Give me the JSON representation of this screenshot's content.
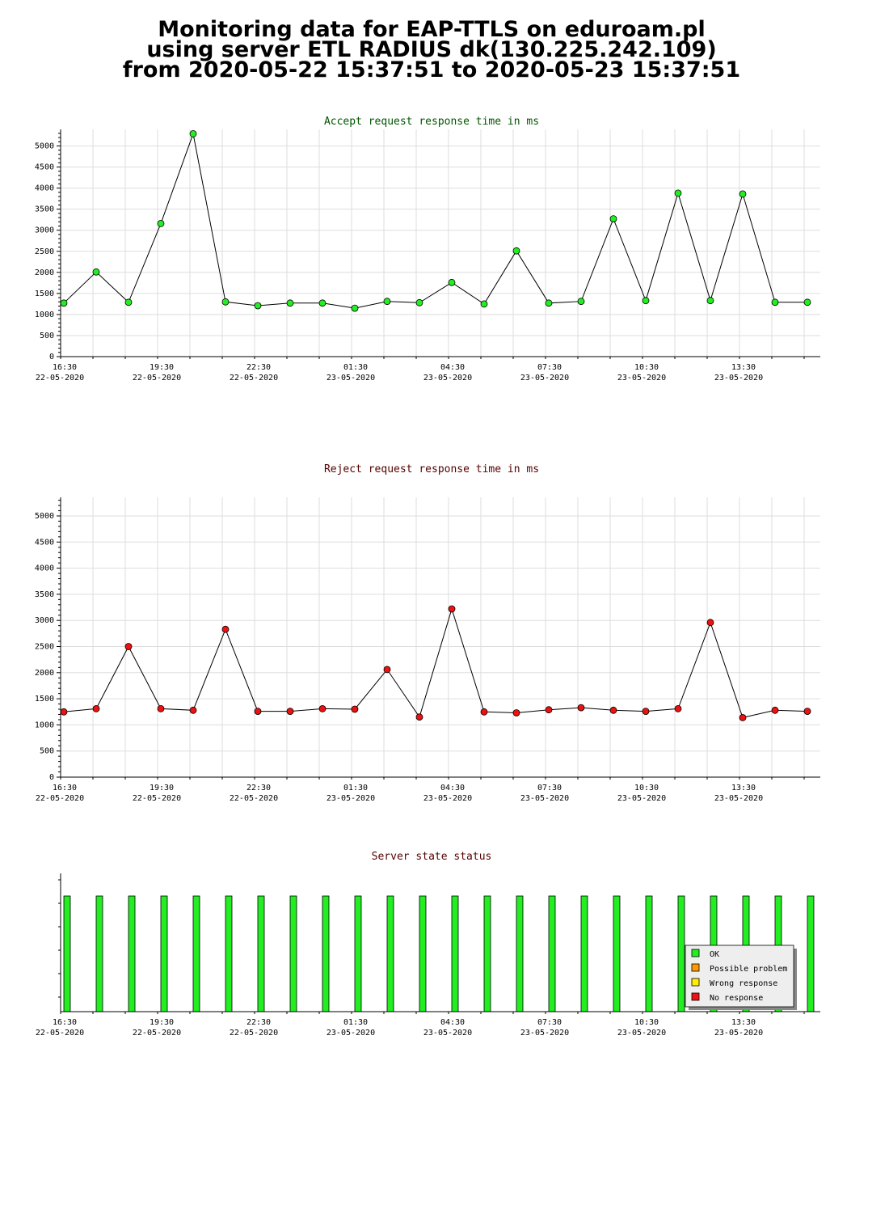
{
  "header": {
    "line1": "Monitoring data for EAP-TTLS on eduroam.pl",
    "line2": "using server ETL RADIUS dk(130.225.242.109)",
    "line3": "from 2020-05-22 15:37:51 to 2020-05-23 15:37:51"
  },
  "colors": {
    "accept": "#22ee22",
    "reject": "#ee1111",
    "accept_title": "#005500",
    "reject_title": "#550000",
    "status_title": "#550000",
    "grid": "#dddddd"
  },
  "chart_data": [
    {
      "type": "line",
      "title": "Accept request response time in ms",
      "y_ticks": [
        "0",
        "500",
        "1000",
        "1500",
        "2000",
        "2500",
        "3000",
        "3500",
        "4000",
        "4500",
        "5000"
      ],
      "x_tick_labels": [
        {
          "time": "16:30",
          "date": "22-05-2020"
        },
        {
          "time": "19:30",
          "date": "22-05-2020"
        },
        {
          "time": "22:30",
          "date": "22-05-2020"
        },
        {
          "time": "01:30",
          "date": "23-05-2020"
        },
        {
          "time": "04:30",
          "date": "23-05-2020"
        },
        {
          "time": "07:30",
          "date": "23-05-2020"
        },
        {
          "time": "10:30",
          "date": "23-05-2020"
        },
        {
          "time": "13:30",
          "date": "23-05-2020"
        }
      ],
      "x": [
        "16:37",
        "17:37",
        "18:37",
        "19:37",
        "20:37",
        "21:37",
        "22:37",
        "23:37",
        "00:37",
        "01:37",
        "02:37",
        "03:37",
        "04:37",
        "05:37",
        "06:37",
        "07:37",
        "08:37",
        "09:37",
        "10:37",
        "11:37",
        "12:37",
        "13:37",
        "14:37",
        "15:37"
      ],
      "ylim": [
        0,
        5300
      ],
      "grid": true,
      "series": [
        {
          "values": [
            1270,
            2010,
            1290,
            3160,
            5290,
            1300,
            1210,
            1270,
            1270,
            1150,
            1310,
            1280,
            1760,
            1250,
            2510,
            1270,
            1310,
            3270,
            1330,
            3880,
            1330,
            3860,
            1290,
            1290
          ]
        }
      ]
    },
    {
      "type": "line",
      "title": "Reject request response time in ms",
      "y_ticks": [
        "0",
        "500",
        "1000",
        "1500",
        "2000",
        "2500",
        "3000",
        "3500",
        "4000",
        "4500",
        "5000"
      ],
      "x_tick_labels": [
        {
          "time": "16:30",
          "date": "22-05-2020"
        },
        {
          "time": "19:30",
          "date": "22-05-2020"
        },
        {
          "time": "22:30",
          "date": "22-05-2020"
        },
        {
          "time": "01:30",
          "date": "23-05-2020"
        },
        {
          "time": "04:30",
          "date": "23-05-2020"
        },
        {
          "time": "07:30",
          "date": "23-05-2020"
        },
        {
          "time": "10:30",
          "date": "23-05-2020"
        },
        {
          "time": "13:30",
          "date": "23-05-2020"
        }
      ],
      "x": [
        "16:37",
        "17:37",
        "18:37",
        "19:37",
        "20:37",
        "21:37",
        "22:37",
        "23:37",
        "00:37",
        "01:37",
        "02:37",
        "03:37",
        "04:37",
        "05:37",
        "06:37",
        "07:37",
        "08:37",
        "09:37",
        "10:37",
        "11:37",
        "12:37",
        "13:37",
        "14:37",
        "15:37"
      ],
      "ylim": [
        0,
        5300
      ],
      "grid": true,
      "series": [
        {
          "values": [
            1250,
            1310,
            2500,
            1310,
            1280,
            2830,
            1260,
            1260,
            1310,
            1300,
            2060,
            1150,
            3220,
            1250,
            1230,
            1290,
            1330,
            1280,
            1260,
            1310,
            2960,
            1140,
            1280,
            1260
          ]
        }
      ]
    },
    {
      "type": "bar",
      "title": "Server state status",
      "x_tick_labels": [
        {
          "time": "16:30",
          "date": "22-05-2020"
        },
        {
          "time": "19:30",
          "date": "22-05-2020"
        },
        {
          "time": "22:30",
          "date": "22-05-2020"
        },
        {
          "time": "01:30",
          "date": "23-05-2020"
        },
        {
          "time": "04:30",
          "date": "23-05-2020"
        },
        {
          "time": "07:30",
          "date": "23-05-2020"
        },
        {
          "time": "10:30",
          "date": "23-05-2020"
        },
        {
          "time": "13:30",
          "date": "23-05-2020"
        }
      ],
      "x": [
        "16:37",
        "17:37",
        "18:37",
        "19:37",
        "20:37",
        "21:37",
        "22:37",
        "23:37",
        "00:37",
        "01:37",
        "02:37",
        "03:37",
        "04:37",
        "05:37",
        "06:37",
        "07:37",
        "08:37",
        "09:37",
        "10:37",
        "11:37",
        "12:37",
        "13:37",
        "14:37",
        "15:37"
      ],
      "states": [
        "OK",
        "OK",
        "OK",
        "OK",
        "OK",
        "OK",
        "OK",
        "OK",
        "OK",
        "OK",
        "OK",
        "OK",
        "OK",
        "OK",
        "OK",
        "OK",
        "OK",
        "OK",
        "OK",
        "OK",
        "OK",
        "OK",
        "OK",
        "OK"
      ],
      "legend": [
        {
          "label": "OK",
          "color": "#22ee22"
        },
        {
          "label": "Possible problem",
          "color": "#ff9900"
        },
        {
          "label": "Wrong response",
          "color": "#ffee00"
        },
        {
          "label": "No response",
          "color": "#ee1111"
        }
      ]
    }
  ]
}
